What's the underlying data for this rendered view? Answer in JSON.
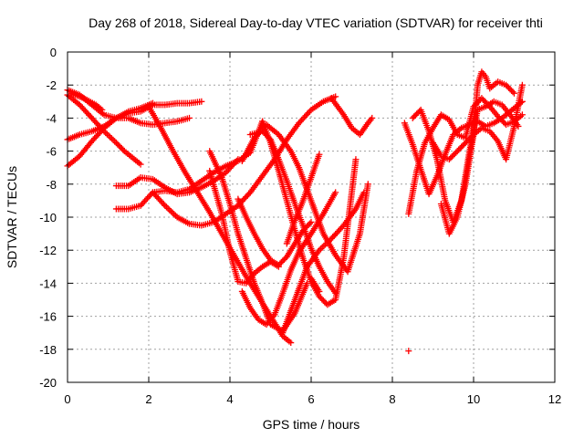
{
  "chart_data": {
    "type": "scatter",
    "title": "Day 268 of 2018, Sidereal Day-to-day VTEC variation (SDTVAR) for receiver thti",
    "xlabel": "GPS time / hours",
    "ylabel": "SDTVAR / TECUs",
    "xlim": [
      0,
      12
    ],
    "ylim": [
      -20,
      0
    ],
    "xticks": [
      "0",
      "2",
      "4",
      "6",
      "8",
      "10",
      "12"
    ],
    "yticks": [
      "0",
      "-2",
      "-4",
      "-6",
      "-8",
      "-10",
      "-12",
      "-14",
      "-16",
      "-18",
      "-20"
    ],
    "grid": true,
    "marker": "+",
    "color": "#ff0000",
    "series": [
      {
        "x": [
          0.0,
          0.3,
          0.6,
          0.9,
          1.2,
          1.4,
          1.6,
          1.8
        ],
        "y": [
          -2.6,
          -3.2,
          -4.0,
          -4.8,
          -5.5,
          -6.0,
          -6.4,
          -6.8
        ]
      },
      {
        "x": [
          0.0,
          0.3,
          0.6,
          0.9,
          1.2,
          1.5,
          1.8,
          2.1,
          2.4,
          2.7,
          3.0
        ],
        "y": [
          -2.3,
          -2.6,
          -3.2,
          -3.8,
          -4.0,
          -4.0,
          -4.3,
          -4.4,
          -4.3,
          -4.2,
          -4.0
        ]
      },
      {
        "x": [
          0.0,
          0.3,
          0.6,
          0.9,
          1.2,
          1.5,
          1.8,
          2.1
        ],
        "y": [
          -5.3,
          -5.0,
          -4.8,
          -4.5,
          -4.0,
          -3.6,
          -3.4,
          -3.1
        ]
      },
      {
        "x": [
          0.0,
          0.3,
          0.6,
          0.9,
          1.2,
          1.5,
          1.8,
          2.1,
          2.4,
          2.7,
          3.0,
          3.3
        ],
        "y": [
          -6.9,
          -6.3,
          -5.4,
          -4.6,
          -4.0,
          -3.7,
          -3.6,
          -3.2,
          -3.2,
          -3.1,
          -3.1,
          -3.0
        ]
      },
      {
        "x": [
          0.1,
          0.4,
          0.7,
          0.85
        ],
        "y": [
          -2.5,
          -2.8,
          -3.2,
          -3.5
        ]
      },
      {
        "x": [
          2.0,
          2.3,
          2.6,
          2.9,
          3.2,
          3.5,
          3.8,
          4.1,
          4.4,
          4.7,
          5.0,
          5.3,
          5.5
        ],
        "y": [
          -3.3,
          -4.6,
          -6.0,
          -7.3,
          -8.5,
          -9.7,
          -11.0,
          -12.3,
          -13.6,
          -14.8,
          -16.0,
          -17.2,
          -17.6
        ]
      },
      {
        "x": [
          1.2,
          1.5,
          1.8,
          2.1,
          2.4,
          2.7,
          3.0,
          3.3,
          3.6,
          3.9,
          4.2
        ],
        "y": [
          -8.1,
          -8.1,
          -7.6,
          -7.7,
          -8.2,
          -8.6,
          -8.5,
          -8.2,
          -7.8,
          -7.3,
          -6.5
        ]
      },
      {
        "x": [
          1.2,
          1.5,
          1.8,
          2.1,
          2.4,
          2.7,
          3.0,
          3.3,
          3.6,
          3.9,
          4.2,
          4.5,
          4.8
        ],
        "y": [
          -9.5,
          -9.5,
          -9.3,
          -8.5,
          -8.4,
          -8.5,
          -8.3,
          -7.8,
          -7.3,
          -6.9,
          -6.6,
          -6.1,
          -4.2
        ]
      },
      {
        "x": [
          2.1,
          2.4,
          2.7,
          3.0,
          3.3,
          3.6,
          3.9,
          4.2,
          4.5,
          4.8,
          5.1,
          5.4,
          5.7,
          6.0,
          6.3,
          6.6
        ],
        "y": [
          -8.5,
          -9.3,
          -10.0,
          -10.4,
          -10.5,
          -10.3,
          -9.8,
          -9.3,
          -8.5,
          -7.5,
          -6.5,
          -5.3,
          -4.3,
          -3.5,
          -3.0,
          -2.7
        ]
      },
      {
        "x": [
          3.5,
          3.8,
          4.0,
          4.2,
          4.4,
          4.6,
          4.8,
          5.0,
          5.2
        ],
        "y": [
          -7.2,
          -9.8,
          -12.1,
          -13.9,
          -14.0,
          -13.4,
          -13.0,
          -12.7,
          -13.0
        ]
      },
      {
        "x": [
          3.5,
          3.8,
          4.0,
          4.2,
          4.4,
          4.6,
          4.8,
          5.0,
          5.3,
          5.6,
          5.9
        ],
        "y": [
          -6.0,
          -7.6,
          -9.2,
          -11.0,
          -12.5,
          -14.0,
          -15.2,
          -16.5,
          -16.9,
          -15.8,
          -14.0
        ]
      },
      {
        "x": [
          4.3,
          4.5,
          4.7,
          4.9,
          5.1,
          5.3,
          5.5,
          5.7,
          6.0,
          6.3,
          6.6
        ],
        "y": [
          -14.5,
          -15.5,
          -16.2,
          -16.5,
          -15.9,
          -14.6,
          -13.2,
          -12.1,
          -11.0,
          -9.8,
          -8.5
        ]
      },
      {
        "x": [
          4.5,
          4.8,
          5.0,
          5.2,
          5.4,
          5.6,
          5.8,
          6.0,
          6.2,
          6.4,
          6.6
        ],
        "y": [
          -5.0,
          -4.8,
          -5.3,
          -6.5,
          -7.8,
          -9.2,
          -10.5,
          -11.9,
          -13.0,
          -13.9,
          -14.6
        ]
      },
      {
        "x": [
          4.2,
          4.4,
          4.6,
          4.8,
          5.0,
          5.2,
          5.4,
          5.6,
          5.8,
          6.0
        ],
        "y": [
          -8.9,
          -10.0,
          -11.0,
          -11.9,
          -12.6,
          -12.9,
          -12.4,
          -11.6,
          -10.8,
          -10.3
        ]
      },
      {
        "x": [
          4.8,
          5.0,
          5.2,
          5.4,
          5.6,
          5.8,
          6.0,
          6.2,
          6.4,
          6.6,
          6.8,
          7.1
        ],
        "y": [
          -4.2,
          -5.5,
          -7.2,
          -9.0,
          -10.8,
          -12.5,
          -13.9,
          -14.8,
          -15.3,
          -15.0,
          -12.5,
          -6.5
        ]
      },
      {
        "x": [
          4.3,
          4.6,
          4.9,
          5.2,
          5.5,
          5.7,
          6.0,
          6.3,
          6.6,
          6.9,
          7.2,
          7.4
        ],
        "y": [
          -6.6,
          -5.2,
          -4.4,
          -5.0,
          -6.0,
          -7.0,
          -9.0,
          -11.0,
          -12.3,
          -13.3,
          -11.0,
          -8.0
        ]
      },
      {
        "x": [
          5.3,
          5.6,
          5.9,
          6.2,
          6.5,
          6.8,
          7.1,
          7.3
        ],
        "y": [
          -17.0,
          -15.0,
          -13.0,
          -12.0,
          -11.3,
          -10.5,
          -9.5,
          -8.5
        ]
      },
      {
        "x": [
          5.4,
          5.6,
          5.8,
          6.0,
          6.2
        ],
        "y": [
          -11.6,
          -10.2,
          -9.0,
          -7.6,
          -6.2
        ]
      },
      {
        "x": [
          6.5,
          6.8,
          7.0,
          7.2,
          7.4,
          7.5
        ],
        "y": [
          -2.8,
          -3.8,
          -4.6,
          -5.0,
          -4.3,
          -4.0
        ]
      },
      {
        "x": [
          6.0,
          6.2
        ],
        "y": [
          -13.7,
          -14.5
        ]
      },
      {
        "x": [
          8.3,
          8.5,
          8.7,
          8.9,
          9.1,
          9.3,
          9.5,
          9.7,
          9.9,
          10.1,
          10.3,
          10.5,
          10.7,
          10.9,
          11.1,
          11.2
        ],
        "y": [
          -4.3,
          -5.6,
          -7.1,
          -8.6,
          -7.5,
          -6.2,
          -5.0,
          -4.6,
          -4.4,
          -4.2,
          -4.5,
          -4.3,
          -4.0,
          -3.6,
          -3.2,
          -3.0
        ]
      },
      {
        "x": [
          8.4,
          8.6,
          8.8,
          9.0,
          9.2,
          9.4,
          9.6,
          9.8,
          10.0,
          10.2,
          10.4,
          10.6,
          10.8,
          11.0,
          11.2
        ],
        "y": [
          -9.8,
          -7.2,
          -5.5,
          -4.6,
          -3.8,
          -4.1,
          -5.0,
          -5.2,
          -3.3,
          -2.8,
          -3.3,
          -3.9,
          -4.4,
          -4.2,
          -3.8
        ]
      },
      {
        "x": [
          8.5,
          8.7,
          8.9,
          9.1,
          9.3,
          9.5,
          9.7,
          9.9,
          10.1,
          10.3,
          10.5,
          10.7,
          10.9,
          11.1
        ],
        "y": [
          -4.0,
          -3.5,
          -4.8,
          -6.5,
          -9.0,
          -10.3,
          -9.0,
          -6.0,
          -3.5,
          -3.3,
          -3.0,
          -3.2,
          -3.8,
          -4.5
        ]
      },
      {
        "x": [
          9.2,
          9.4,
          9.6,
          9.8,
          10.0,
          10.1,
          10.2,
          10.3,
          10.4,
          10.6,
          10.8,
          11.0
        ],
        "y": [
          -9.2,
          -11.0,
          -10.0,
          -8.0,
          -5.0,
          -2.0,
          -1.2,
          -1.5,
          -2.2,
          -1.8,
          -2.0,
          -2.5
        ]
      },
      {
        "x": [
          9.0,
          9.2,
          9.4,
          9.6,
          9.8,
          10.0,
          10.2,
          10.4,
          10.6,
          10.8,
          11.0,
          11.2
        ],
        "y": [
          -5.5,
          -6.3,
          -6.5,
          -6.0,
          -5.5,
          -5.0,
          -4.6,
          -4.8,
          -5.4,
          -6.5,
          -4.5,
          -2.0
        ]
      },
      {
        "x": [
          8.4
        ],
        "y": [
          -18.1
        ]
      }
    ]
  }
}
